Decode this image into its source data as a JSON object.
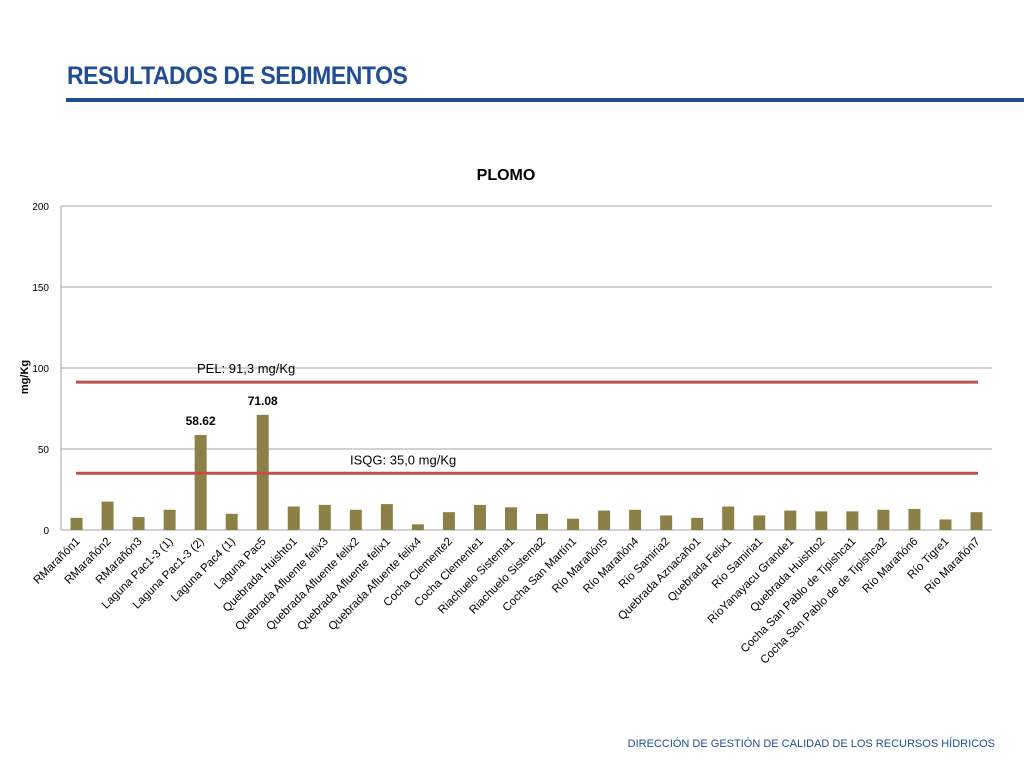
{
  "slide": {
    "title": "RESULTADOS DE SEDIMENTOS",
    "footer": "DIRECCIÓN DE GESTIÓN DE CALIDAD DE LOS RECURSOS HÍDRICOS"
  },
  "colors": {
    "title": "#1F4E96",
    "bar": "#8B8146",
    "reference_line": "#C0504D",
    "grid": "#A6A6A6"
  },
  "chart_data": {
    "type": "bar",
    "title": "PLOMO",
    "xlabel": "",
    "ylabel": "mg/Kg",
    "ylim": [
      0,
      200
    ],
    "yticks": [
      0,
      50,
      100,
      150,
      200
    ],
    "grid": true,
    "legend": "none",
    "categories": [
      "RMarañón1",
      "RMarañón2",
      "RMarañón3",
      "Laguna Pac1-3 (1)",
      "Laguna Pac1-3 (2)",
      "Laguna Pac4 (1)",
      "Laguna Pac5",
      "Quebrada Huishto1",
      "Quebrada Afluente felix3",
      "Quebrada Afluente felix2",
      "Quebrada Afluente felix1",
      "Quebrada Afluente felix4",
      "Cocha Clemente2",
      "Cocha Clemente1",
      "Riachuelo Sistema1",
      "Riachuelo Sistema2",
      "Cocha San Martín1",
      "Río Marañón5",
      "Río Marañón4",
      "Río Samiria2",
      "Quebrada Aznacaño1",
      "Quebrada Felix1",
      "Río Samiria1",
      "RíoYanayacu Grande1",
      "Quebrada Huishto2",
      "Cocha San Pablo de Tipishca1",
      "Cocha San Pablo de de Tipishca2",
      "Río Marañón6",
      "Río Tigre1",
      "Río Marañón7"
    ],
    "values": [
      7.5,
      17.5,
      8,
      12.5,
      58.62,
      10,
      71.08,
      14.5,
      15.5,
      12.5,
      16,
      3.5,
      11,
      15.5,
      14,
      10,
      7,
      12,
      12.5,
      9,
      7.5,
      14.5,
      9,
      12,
      11.5,
      11.5,
      12.5,
      13,
      6.5,
      11
    ],
    "data_labels": [
      {
        "index": 4,
        "text": "58.62"
      },
      {
        "index": 6,
        "text": "71.08"
      }
    ],
    "reference_lines": [
      {
        "value": 91.3,
        "label": "PEL: 91,3 mg/Kg"
      },
      {
        "value": 35.0,
        "label": "ISQG: 35,0 mg/Kg"
      }
    ]
  }
}
